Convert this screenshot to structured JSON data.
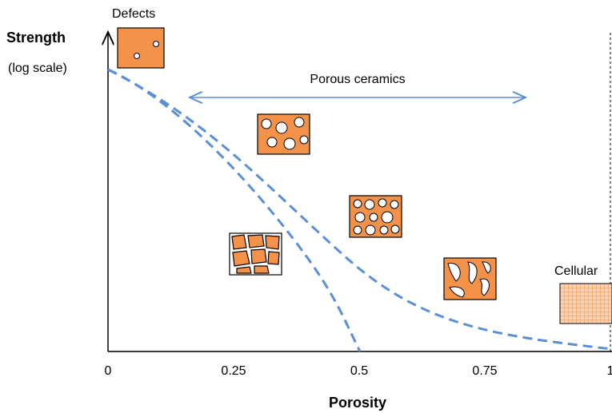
{
  "axes": {
    "y_label": "Strength",
    "y_note": "(log scale)",
    "x_label": "Porosity",
    "x_ticks": [
      0,
      0.25,
      0.5,
      0.75,
      1
    ]
  },
  "annotations": {
    "defects": "Defects",
    "porous_ceramics": "Porous ceramics",
    "cellular": "Cellular"
  }
}
